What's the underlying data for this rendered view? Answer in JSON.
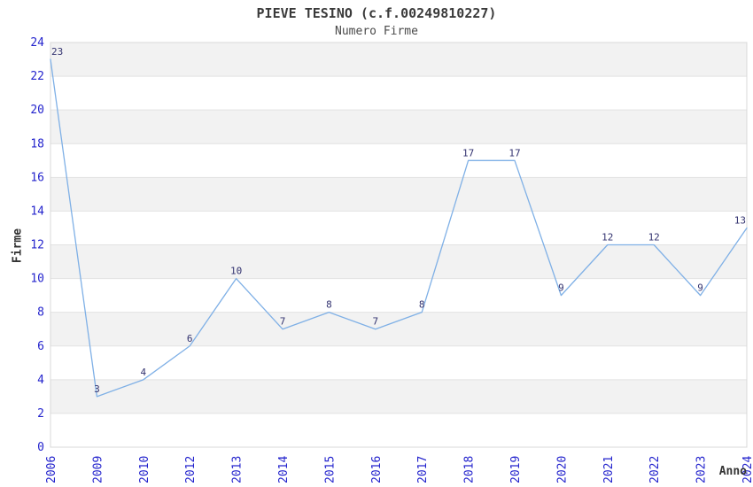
{
  "chart_data": {
    "type": "line",
    "title": "PIEVE TESINO (c.f.00249810227)",
    "subtitle": "Numero Firme",
    "xlabel": "Anno",
    "ylabel": "Firme",
    "categories": [
      "2006",
      "2009",
      "2010",
      "2012",
      "2013",
      "2014",
      "2015",
      "2016",
      "2017",
      "2018",
      "2019",
      "2020",
      "2021",
      "2022",
      "2023",
      "2024"
    ],
    "values": [
      23,
      3,
      4,
      6,
      10,
      7,
      8,
      7,
      8,
      17,
      17,
      9,
      12,
      12,
      9,
      13
    ],
    "ylim": [
      0,
      24
    ],
    "ytick_step": 2,
    "legend_position": "none",
    "grid": "horizontal-bands",
    "point_labels_visible": true,
    "colors": {
      "line": "#7fb0e6",
      "point_label": "#333370",
      "tick_label": "#2424cd",
      "band_gray": "#f2f2f2",
      "band_white": "#ffffff",
      "gridline": "#e2e2e2",
      "plot_border": "#d8d8d8",
      "title_text": "#3a3a3a",
      "axis_title_text": "#333333"
    }
  }
}
